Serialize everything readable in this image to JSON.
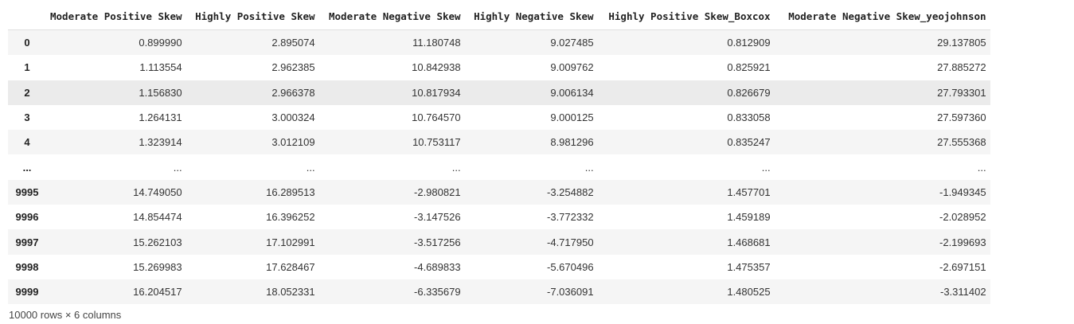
{
  "table": {
    "columns": [
      "Moderate Positive Skew",
      "Highly Positive Skew",
      "Moderate Negative Skew",
      "Highly Negative Skew",
      "Highly Positive Skew_Boxcox",
      "Moderate Negative Skew_yeojohnson"
    ],
    "rows": [
      {
        "index": "0",
        "values": [
          "0.899990",
          "2.895074",
          "11.180748",
          "9.027485",
          "0.812909",
          "29.137805"
        ]
      },
      {
        "index": "1",
        "values": [
          "1.113554",
          "2.962385",
          "10.842938",
          "9.009762",
          "0.825921",
          "27.885272"
        ]
      },
      {
        "index": "2",
        "values": [
          "1.156830",
          "2.966378",
          "10.817934",
          "9.006134",
          "0.826679",
          "27.793301"
        ]
      },
      {
        "index": "3",
        "values": [
          "1.264131",
          "3.000324",
          "10.764570",
          "9.000125",
          "0.833058",
          "27.597360"
        ]
      },
      {
        "index": "4",
        "values": [
          "1.323914",
          "3.012109",
          "10.753117",
          "8.981296",
          "0.835247",
          "27.555368"
        ]
      },
      {
        "index": "...",
        "values": [
          "...",
          "...",
          "...",
          "...",
          "...",
          "..."
        ]
      },
      {
        "index": "9995",
        "values": [
          "14.749050",
          "16.289513",
          "-2.980821",
          "-3.254882",
          "1.457701",
          "-1.949345"
        ]
      },
      {
        "index": "9996",
        "values": [
          "14.854474",
          "16.396252",
          "-3.147526",
          "-3.772332",
          "1.459189",
          "-2.028952"
        ]
      },
      {
        "index": "9997",
        "values": [
          "15.262103",
          "17.102991",
          "-3.517256",
          "-4.717950",
          "1.468681",
          "-2.199693"
        ]
      },
      {
        "index": "9998",
        "values": [
          "15.269983",
          "17.628467",
          "-4.689833",
          "-5.670496",
          "1.475357",
          "-2.697151"
        ]
      },
      {
        "index": "9999",
        "values": [
          "16.204517",
          "18.052331",
          "-6.335679",
          "-7.036091",
          "1.480525",
          "-3.311402"
        ]
      }
    ],
    "hovered_row": 2
  },
  "summary": "10000 rows × 6 columns"
}
